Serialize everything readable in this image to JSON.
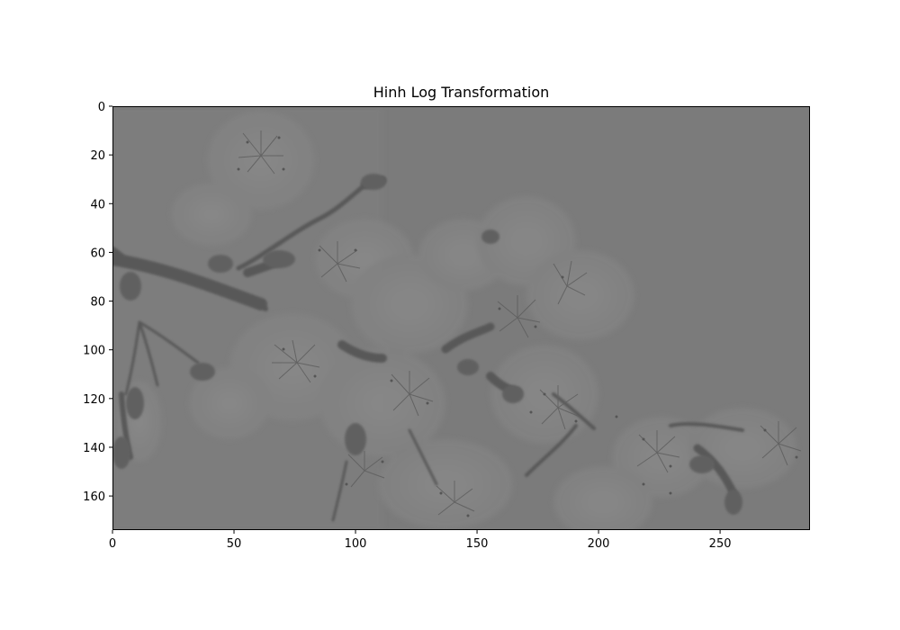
{
  "figure": {
    "title": "Hinh Log Transformation"
  },
  "image": {
    "description_icon": "cherry-blossom-branch-image",
    "colormap": "gray",
    "background_color": "#7d7d7d",
    "x_range": [
      0,
      287
    ],
    "y_range": [
      0,
      174
    ]
  },
  "axes": {
    "x_ticks": [
      {
        "value": 0,
        "label": "0"
      },
      {
        "value": 50,
        "label": "50"
      },
      {
        "value": 100,
        "label": "100"
      },
      {
        "value": 150,
        "label": "150"
      },
      {
        "value": 200,
        "label": "200"
      },
      {
        "value": 250,
        "label": "250"
      }
    ],
    "y_ticks": [
      {
        "value": 0,
        "label": "0"
      },
      {
        "value": 20,
        "label": "20"
      },
      {
        "value": 40,
        "label": "40"
      },
      {
        "value": 60,
        "label": "60"
      },
      {
        "value": 80,
        "label": "80"
      },
      {
        "value": 100,
        "label": "100"
      },
      {
        "value": 120,
        "label": "120"
      },
      {
        "value": 140,
        "label": "140"
      },
      {
        "value": 160,
        "label": "160"
      }
    ]
  }
}
